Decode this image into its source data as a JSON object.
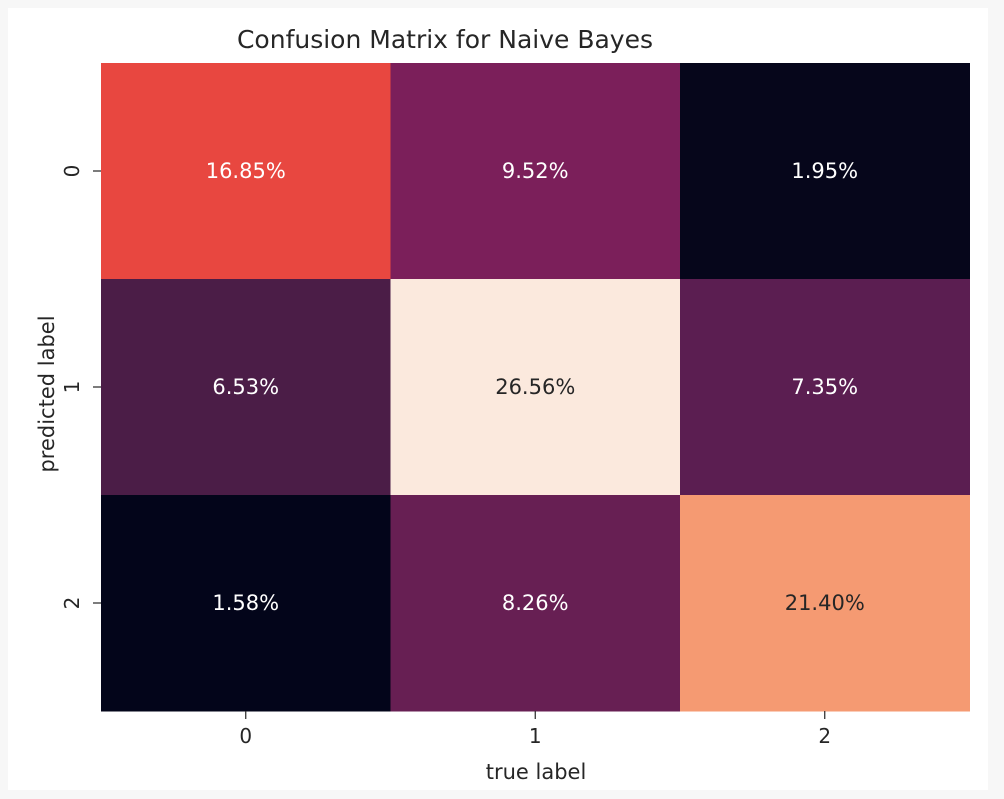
{
  "chart_data": {
    "type": "heatmap",
    "title": "Confusion Matrix for Naive Bayes",
    "xlabel": "true label",
    "ylabel": "predicted label",
    "x_categories": [
      "0",
      "1",
      "2"
    ],
    "y_categories": [
      "0",
      "1",
      "2"
    ],
    "values": [
      [
        16.85,
        9.52,
        1.95
      ],
      [
        6.53,
        26.56,
        7.35
      ],
      [
        1.58,
        8.26,
        21.4
      ]
    ],
    "labels": [
      [
        "16.85%",
        "9.52%",
        "1.95%"
      ],
      [
        "6.53%",
        "26.56%",
        "7.35%"
      ],
      [
        "1.58%",
        "8.26%",
        "21.40%"
      ]
    ],
    "colorbar": false,
    "colormap": "rocket",
    "cell_colors": [
      [
        "#e84740",
        "#7b1f5a",
        "#06061b"
      ],
      [
        "#4b1d47",
        "#fbe9dd",
        "#5b1e51"
      ],
      [
        "#03051a",
        "#671f53",
        "#f59a72"
      ]
    ],
    "text_colors": [
      [
        "#ffffff",
        "#ffffff",
        "#ffffff"
      ],
      [
        "#ffffff",
        "#262626",
        "#ffffff"
      ],
      [
        "#ffffff",
        "#ffffff",
        "#262626"
      ]
    ]
  }
}
